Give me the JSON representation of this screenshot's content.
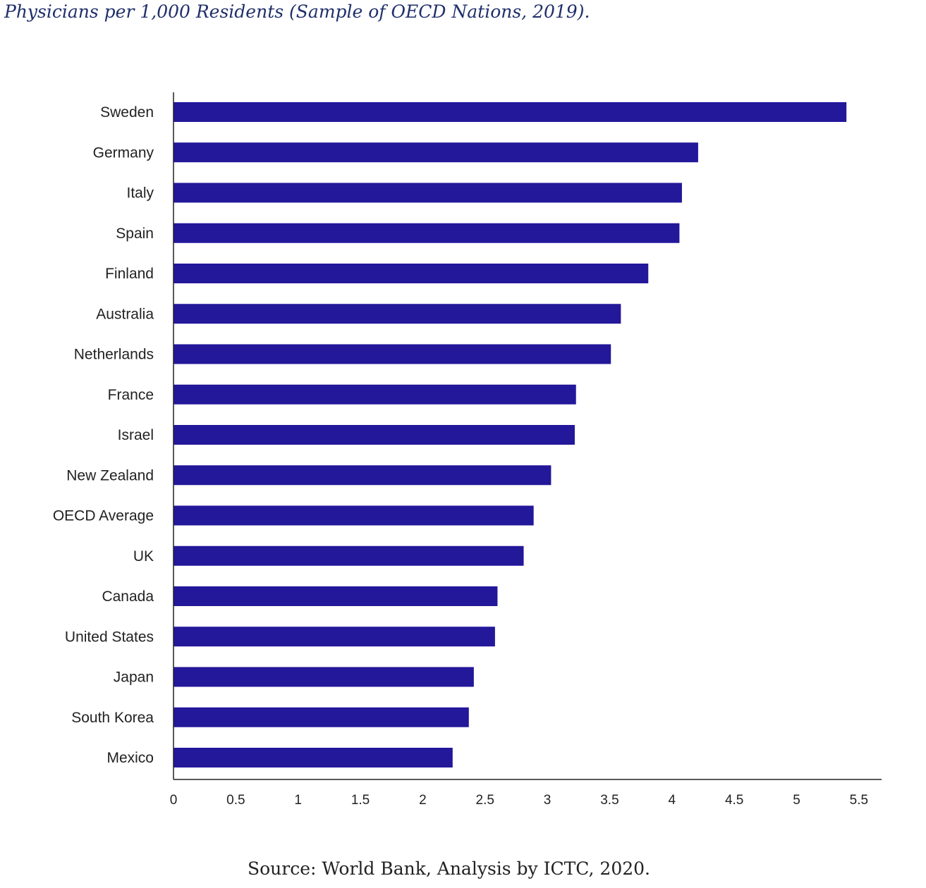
{
  "title": "Physicians per 1,000 Residents (Sample of OECD Nations, 2019).",
  "source": "Source: World Bank, Analysis by ICTC, 2020.",
  "colors": {
    "bar": "#23179a",
    "axis": "#222222"
  },
  "chart_data": {
    "type": "bar",
    "orientation": "horizontal",
    "title": "Physicians per 1,000 Residents (Sample of OECD Nations, 2019).",
    "xlabel": "",
    "ylabel": "",
    "categories": [
      "Sweden",
      "Germany",
      "Italy",
      "Spain",
      "Finland",
      "Australia",
      "Netherlands",
      "France",
      "Israel",
      "New Zealand",
      "OECD Average",
      "UK",
      "Canada",
      "United States",
      "Japan",
      "South Korea",
      "Mexico"
    ],
    "values": [
      5.4,
      4.21,
      4.08,
      4.06,
      3.81,
      3.59,
      3.51,
      3.23,
      3.22,
      3.03,
      2.89,
      2.81,
      2.6,
      2.58,
      2.41,
      2.37,
      2.24
    ],
    "xlim": [
      0,
      5.67
    ],
    "xticks": [
      "0",
      "0.5",
      "1",
      "1.5",
      "2",
      "2.5",
      "3",
      "3.5",
      "4",
      "4.5",
      "5",
      "5.5"
    ],
    "grid": false,
    "legend": "none"
  }
}
